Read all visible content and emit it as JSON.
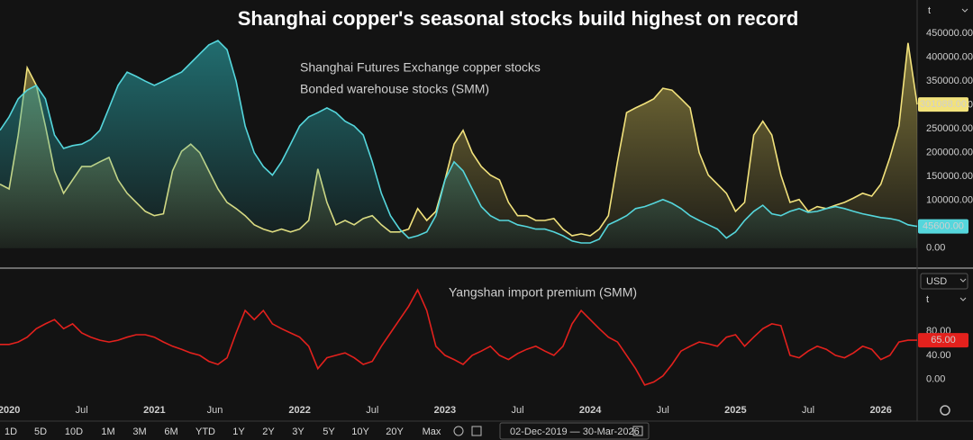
{
  "chart_data": {
    "type": "line",
    "title": "Shanghai copper's seasonal stocks build highest on record",
    "x": [
      2019.9375,
      2020,
      2020.0625,
      2020.125,
      2020.1875,
      2020.25,
      2020.3125,
      2020.375,
      2020.4375,
      2020.5,
      2020.5625,
      2020.625,
      2020.6875,
      2020.75,
      2020.8125,
      2020.875,
      2020.9375,
      2021,
      2021.0625,
      2021.125,
      2021.1875,
      2021.25,
      2021.3125,
      2021.375,
      2021.4375,
      2021.5,
      2021.5625,
      2021.625,
      2021.6875,
      2021.75,
      2021.8125,
      2021.875,
      2021.9375,
      2022,
      2022.0625,
      2022.125,
      2022.1875,
      2022.25,
      2022.3125,
      2022.375,
      2022.4375,
      2022.5,
      2022.5625,
      2022.625,
      2022.6875,
      2022.75,
      2022.8125,
      2022.875,
      2022.9375,
      2023,
      2023.0625,
      2023.125,
      2023.1875,
      2023.25,
      2023.3125,
      2023.375,
      2023.4375,
      2023.5,
      2023.5625,
      2023.625,
      2023.6875,
      2023.75,
      2023.8125,
      2023.875,
      2023.9375,
      2024,
      2024.0625,
      2024.125,
      2024.1875,
      2024.25,
      2024.3125,
      2024.375,
      2024.4375,
      2024.5,
      2024.5625,
      2024.625,
      2024.6875,
      2024.75,
      2024.8125,
      2024.875,
      2024.9375,
      2025,
      2025.0625,
      2025.125,
      2025.1875,
      2025.25,
      2025.3125,
      2025.375,
      2025.4375,
      2025.5,
      2025.5625,
      2025.625,
      2025.6875,
      2025.75,
      2025.8125,
      2025.875,
      2025.9375,
      2026,
      2026.0625,
      2026.125,
      2026.1875,
      2026.25
    ],
    "xlim": [
      2019.9375,
      2026.25
    ],
    "xticks": [
      {
        "value": 2020,
        "label": "2020"
      },
      {
        "value": 2020.5,
        "label": "Jul"
      },
      {
        "value": 2021,
        "label": "2021"
      },
      {
        "value": 2021.4167,
        "label": "Jun"
      },
      {
        "value": 2022,
        "label": "2022"
      },
      {
        "value": 2022.5,
        "label": "Jul"
      },
      {
        "value": 2023,
        "label": "2023"
      },
      {
        "value": 2023.5,
        "label": "Jul"
      },
      {
        "value": 2024,
        "label": "2024"
      },
      {
        "value": 2024.5,
        "label": "Jul"
      },
      {
        "value": 2025,
        "label": "2025"
      },
      {
        "value": 2025.5,
        "label": "Jul"
      },
      {
        "value": 2026,
        "label": "2026"
      }
    ],
    "panels": [
      {
        "unit": "t",
        "ylim": [
          -40000,
          520000
        ],
        "yticks": [
          {
            "value": 0,
            "label": "0.00"
          },
          {
            "value": 50000,
            "label": "50000.00"
          },
          {
            "value": 100000,
            "label": "100000.00"
          },
          {
            "value": 150000,
            "label": "150000.00"
          },
          {
            "value": 200000,
            "label": "200000.00"
          },
          {
            "value": 250000,
            "label": "250000.00"
          },
          {
            "value": 300000,
            "label": "300000.00"
          },
          {
            "value": 350000,
            "label": "350000.00"
          },
          {
            "value": 400000,
            "label": "400000.00"
          },
          {
            "value": 450000,
            "label": "450000.00"
          }
        ],
        "series": [
          {
            "name": "Shanghai Futures Exchange copper stocks",
            "color": "#f2e27c",
            "area": true,
            "values": [
              134000,
              124000,
              237000,
              378000,
              341000,
              256000,
              162000,
              115000,
              143000,
              171000,
              171000,
              181000,
              190000,
              143000,
              115000,
              96000,
              77000,
              68000,
              72000,
              162000,
              203000,
              218000,
              200000,
              162000,
              124000,
              96000,
              83000,
              68000,
              49000,
              40000,
              34000,
              40000,
              34000,
              40000,
              58000,
              166000,
              96000,
              49000,
              58000,
              49000,
              62000,
              68000,
              49000,
              34000,
              34000,
              40000,
              83000,
              58000,
              77000,
              143000,
              218000,
              247000,
              200000,
              171000,
              153000,
              143000,
              96000,
              68000,
              68000,
              58000,
              58000,
              62000,
              40000,
              26000,
              30000,
              26000,
              40000,
              68000,
              181000,
              284000,
              294000,
              303000,
              313000,
              335000,
              331000,
              313000,
              294000,
              200000,
              153000,
              134000,
              115000,
              77000,
              96000,
              237000,
              266000,
              237000,
              153000,
              96000,
              102000,
              77000,
              87000,
              83000,
              90000,
              96000,
              105000,
              115000,
              109000,
              134000,
              190000,
              256000,
              430000,
              301088
            ],
            "last_label": "301088.00"
          },
          {
            "name": "Bonded warehouse stocks (SMM)",
            "color": "#55d6dc",
            "area": true,
            "values": [
              247000,
              275000,
              313000,
              331000,
              341000,
              313000,
              237000,
              209000,
              215000,
              218000,
              228000,
              247000,
              294000,
              341000,
              369000,
              360000,
              350000,
              341000,
              350000,
              360000,
              369000,
              388000,
              407000,
              426000,
              435000,
              416000,
              350000,
              256000,
              200000,
              171000,
              153000,
              181000,
              218000,
              256000,
              275000,
              284000,
              294000,
              284000,
              266000,
              256000,
              237000,
              181000,
              115000,
              68000,
              40000,
              21000,
              26000,
              34000,
              68000,
              143000,
              181000,
              162000,
              124000,
              87000,
              68000,
              58000,
              58000,
              49000,
              45000,
              40000,
              40000,
              34000,
              26000,
              15000,
              11000,
              11000,
              19000,
              49000,
              58000,
              68000,
              83000,
              87000,
              94000,
              102000,
              94000,
              83000,
              68000,
              58000,
              49000,
              40000,
              21000,
              34000,
              58000,
              77000,
              90000,
              72000,
              68000,
              77000,
              83000,
              75000,
              77000,
              83000,
              87000,
              83000,
              77000,
              72000,
              68000,
              64000,
              62000,
              58000,
              49000,
              45600
            ],
            "last_label": "45600.00"
          }
        ]
      },
      {
        "currency": "USD",
        "unit": "t",
        "ylim": [
          -27,
          181
        ],
        "yticks": [
          {
            "value": 0,
            "label": "0.00"
          },
          {
            "value": 40,
            "label": "40.00"
          },
          {
            "value": 80,
            "label": "80.00"
          }
        ],
        "series": [
          {
            "name": "Yangshan import premium (SMM)",
            "color": "#e3211d",
            "area": false,
            "values": [
              58,
              58,
              62,
              70,
              84,
              92,
              99,
              84,
              92,
              77,
              70,
              65,
              62,
              65,
              70,
              74,
              74,
              70,
              62,
              55,
              50,
              44,
              40,
              30,
              25,
              36,
              77,
              114,
              99,
              114,
              92,
              84,
              77,
              70,
              55,
              18,
              36,
              40,
              44,
              36,
              25,
              30,
              55,
              77,
              99,
              121,
              148,
              114,
              55,
              40,
              33,
              25,
              40,
              47,
              55,
              40,
              33,
              43,
              50,
              55,
              47,
              40,
              55,
              92,
              114,
              99,
              84,
              70,
              62,
              40,
              18,
              -9,
              -4,
              6,
              25,
              47,
              55,
              62,
              59,
              55,
              70,
              74,
              55,
              70,
              84,
              92,
              89,
              40,
              36,
              47,
              55,
              50,
              40,
              36,
              44,
              55,
              50,
              33,
              40,
              62,
              65,
              65
            ],
            "last_label": "65.00"
          }
        ]
      }
    ],
    "grid": false
  },
  "toolbar": {
    "ranges": [
      "1D",
      "5D",
      "10D",
      "1M",
      "3M",
      "6M",
      "YTD",
      "1Y",
      "2Y",
      "3Y",
      "5Y",
      "10Y",
      "20Y",
      "Max"
    ],
    "date_range": "02-Dec-2019 — 30-Mar-2026"
  }
}
